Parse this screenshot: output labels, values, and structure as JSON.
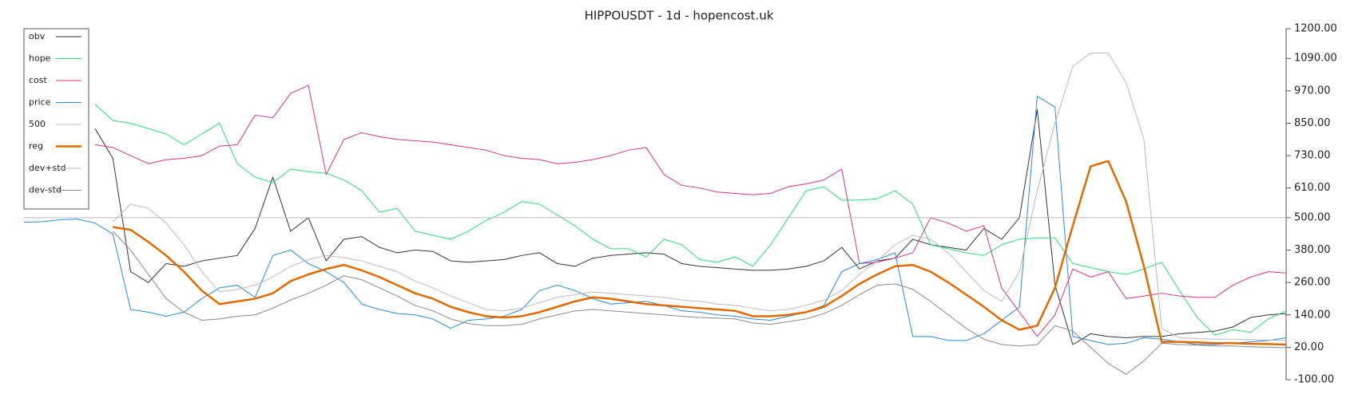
{
  "chart_data": {
    "type": "line",
    "title": "HIPPOUSDT - 1d - hopencost.uk",
    "ylim": [
      -100,
      1200
    ],
    "yticks": [
      {
        "value": 1200,
        "label": "1200.00"
      },
      {
        "value": 1090,
        "label": "1090.00"
      },
      {
        "value": 970,
        "label": "970.00"
      },
      {
        "value": 850,
        "label": "850.00"
      },
      {
        "value": 730,
        "label": "730.00"
      },
      {
        "value": 610,
        "label": "610.00"
      },
      {
        "value": 500,
        "label": "500.00"
      },
      {
        "value": 380,
        "label": "380.00"
      },
      {
        "value": 260,
        "label": "260.00"
      },
      {
        "value": 140,
        "label": "140.00"
      },
      {
        "value": 20,
        "label": "20.00"
      },
      {
        "value": -100,
        "label": "-100.00"
      }
    ],
    "grid": false,
    "legend": "upper-left",
    "series": [
      {
        "name": "obv",
        "color": "#333333",
        "width": 1,
        "values": [
          null,
          null,
          null,
          null,
          830,
          720,
          300,
          260,
          330,
          320,
          340,
          350,
          360,
          460,
          650,
          450,
          500,
          340,
          420,
          430,
          390,
          370,
          380,
          375,
          340,
          335,
          340,
          345,
          360,
          370,
          330,
          320,
          350,
          360,
          365,
          370,
          365,
          330,
          320,
          315,
          310,
          305,
          305,
          310,
          320,
          340,
          390,
          310,
          340,
          350,
          420,
          400,
          390,
          380,
          460,
          420,
          500,
          900,
          250,
          30,
          70,
          60,
          55,
          60,
          60,
          70,
          75,
          80,
          95,
          130,
          140,
          145
        ]
      },
      {
        "name": "hope",
        "color": "#2fdc78",
        "width": 1,
        "values": [
          null,
          null,
          null,
          null,
          920,
          860,
          850,
          830,
          810,
          770,
          810,
          850,
          700,
          650,
          630,
          680,
          670,
          665,
          640,
          600,
          520,
          535,
          450,
          435,
          420,
          450,
          490,
          520,
          560,
          550,
          510,
          470,
          420,
          385,
          385,
          355,
          420,
          400,
          345,
          335,
          355,
          320,
          400,
          500,
          600,
          615,
          565,
          565,
          570,
          600,
          550,
          400,
          385,
          370,
          360,
          400,
          420,
          425,
          425,
          330,
          315,
          300,
          290,
          310,
          335,
          230,
          130,
          65,
          85,
          75,
          125,
          155
        ]
      },
      {
        "name": "cost",
        "color": "#d8338a",
        "width": 1,
        "values": [
          null,
          null,
          null,
          null,
          770,
          760,
          730,
          700,
          715,
          720,
          730,
          765,
          770,
          880,
          870,
          960,
          990,
          660,
          790,
          815,
          800,
          790,
          785,
          780,
          770,
          760,
          750,
          730,
          720,
          715,
          700,
          705,
          715,
          730,
          750,
          760,
          660,
          620,
          610,
          595,
          590,
          585,
          590,
          615,
          625,
          640,
          680,
          330,
          335,
          350,
          370,
          500,
          480,
          450,
          470,
          240,
          150,
          60,
          140,
          310,
          280,
          300,
          200,
          210,
          220,
          210,
          205,
          205,
          250,
          280,
          300,
          295
        ]
      },
      {
        "name": "price",
        "color": "#2a88dd",
        "width": 1,
        "values": [
          483,
          485,
          492,
          495,
          480,
          440,
          160,
          150,
          135,
          150,
          200,
          240,
          250,
          205,
          360,
          380,
          330,
          300,
          260,
          180,
          160,
          145,
          140,
          125,
          90,
          120,
          125,
          135,
          160,
          230,
          250,
          230,
          200,
          180,
          185,
          190,
          175,
          155,
          150,
          140,
          135,
          125,
          120,
          135,
          150,
          175,
          300,
          330,
          345,
          370,
          60,
          60,
          45,
          45,
          70,
          120,
          170,
          950,
          910,
          60,
          45,
          30,
          35,
          55,
          50,
          40,
          30,
          30,
          35,
          40,
          45,
          55
        ]
      },
      {
        "name": "500",
        "color": "#bbbbbb",
        "width": 1,
        "values": [
          500,
          500,
          500,
          500,
          500,
          500,
          500,
          500,
          500,
          500,
          500,
          500,
          500,
          500,
          500,
          500,
          500,
          500,
          500,
          500,
          500,
          500,
          500,
          500,
          500,
          500,
          500,
          500,
          500,
          500,
          500,
          500,
          500,
          500,
          500,
          500,
          500,
          500,
          500,
          500,
          500,
          500,
          500,
          500,
          500,
          500,
          500,
          500,
          500,
          500,
          500,
          500,
          500,
          500,
          500,
          500,
          500,
          500,
          500,
          500,
          500,
          500,
          500,
          500,
          500,
          500,
          500,
          500,
          500,
          500,
          500,
          500
        ]
      },
      {
        "name": "reg",
        "color": "#e06a00",
        "width": 2.5,
        "values": [
          null,
          null,
          null,
          null,
          null,
          465,
          455,
          410,
          360,
          300,
          230,
          180,
          190,
          200,
          220,
          265,
          290,
          310,
          325,
          305,
          280,
          250,
          220,
          200,
          170,
          150,
          135,
          130,
          135,
          150,
          170,
          190,
          205,
          200,
          190,
          180,
          175,
          170,
          165,
          160,
          155,
          135,
          135,
          140,
          150,
          170,
          210,
          255,
          290,
          320,
          325,
          300,
          260,
          215,
          170,
          120,
          85,
          100,
          240,
          470,
          690,
          710,
          560,
          320,
          40,
          40,
          38,
          35,
          35,
          33,
          32,
          30
        ]
      },
      {
        "name": "dev+std",
        "color": "#bbbbbb",
        "width": 1,
        "values": [
          null,
          null,
          null,
          null,
          null,
          485,
          550,
          535,
          480,
          400,
          300,
          225,
          235,
          250,
          280,
          320,
          345,
          360,
          352,
          340,
          320,
          300,
          265,
          240,
          210,
          185,
          160,
          155,
          165,
          185,
          205,
          215,
          225,
          220,
          215,
          210,
          205,
          195,
          190,
          180,
          175,
          165,
          155,
          160,
          175,
          195,
          230,
          290,
          340,
          400,
          435,
          420,
          370,
          300,
          230,
          190,
          300,
          600,
          850,
          1060,
          1110,
          1110,
          1000,
          790,
          90,
          55,
          52,
          50,
          50,
          48,
          47,
          45
        ]
      },
      {
        "name": "dev-std",
        "color": "#888888",
        "width": 1,
        "values": [
          null,
          null,
          null,
          null,
          null,
          450,
          380,
          290,
          200,
          150,
          120,
          125,
          135,
          140,
          165,
          195,
          220,
          250,
          285,
          270,
          240,
          210,
          175,
          155,
          125,
          108,
          100,
          100,
          105,
          125,
          140,
          155,
          160,
          155,
          150,
          145,
          140,
          135,
          130,
          128,
          125,
          110,
          105,
          115,
          125,
          145,
          175,
          215,
          250,
          255,
          235,
          190,
          140,
          90,
          50,
          30,
          25,
          30,
          100,
          80,
          20,
          -40,
          -80,
          -30,
          35,
          30,
          28,
          25,
          25,
          22,
          20,
          18
        ]
      }
    ]
  }
}
